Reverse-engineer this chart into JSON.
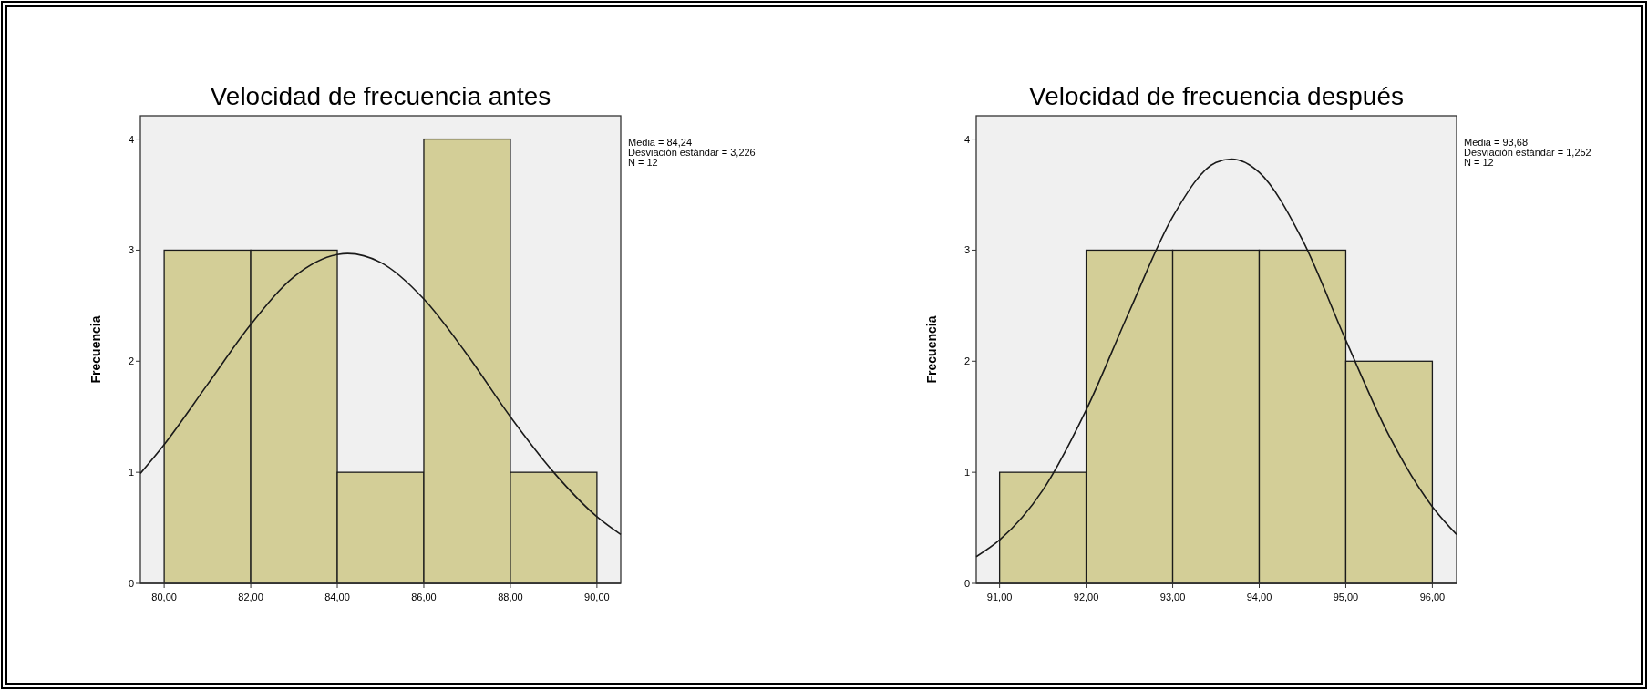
{
  "chart_data": [
    {
      "type": "histogram",
      "title": "Velocidad de frecuencia antes",
      "ylabel": "Frecuencia",
      "bins": [
        80,
        82,
        84,
        86,
        88,
        90
      ],
      "values": [
        3,
        3,
        1,
        4,
        1
      ],
      "color": "#d3ce97",
      "series": [
        {
          "type": "line",
          "color": "#1a1a1a",
          "x": [
            79.45,
            80,
            81,
            82,
            83,
            84,
            84.24,
            85,
            86,
            87,
            88,
            89,
            90,
            90.55
          ],
          "values": [
            0.99,
            1.25,
            1.79,
            2.33,
            2.76,
            2.96,
            2.97,
            2.89,
            2.56,
            2.06,
            1.5,
            1.0,
            0.6,
            0.44
          ]
        }
      ],
      "xlim": [
        79.45,
        90.55
      ],
      "xticks": [
        {
          "value": 80,
          "label": "80,00"
        },
        {
          "value": 82,
          "label": "82,00"
        },
        {
          "value": 84,
          "label": "84,00"
        },
        {
          "value": 86,
          "label": "86,00"
        },
        {
          "value": 88,
          "label": "88,00"
        },
        {
          "value": 90,
          "label": "90,00"
        }
      ],
      "ylim": [
        0,
        4.21
      ],
      "yticks": [
        0,
        1,
        2,
        3,
        4
      ],
      "annotations": [
        "Media = 84,24",
        "Desviación estándar = 3,226",
        "N = 12"
      ]
    },
    {
      "type": "histogram",
      "title": "Velocidad de frecuencia después",
      "ylabel": "Frecuencia",
      "bins": [
        91,
        92,
        93,
        94,
        95,
        96
      ],
      "values": [
        1,
        3,
        3,
        3,
        2
      ],
      "color": "#d3ce97",
      "series": [
        {
          "type": "line",
          "color": "#1a1a1a",
          "x": [
            90.73,
            91,
            91.5,
            92,
            92.5,
            93,
            93.5,
            93.68,
            94,
            94.5,
            95,
            95.5,
            96,
            96.28
          ],
          "values": [
            0.24,
            0.39,
            0.84,
            1.56,
            2.45,
            3.3,
            3.79,
            3.82,
            3.7,
            3.09,
            2.19,
            1.33,
            0.69,
            0.44
          ]
        }
      ],
      "xlim": [
        90.73,
        96.28
      ],
      "xticks": [
        {
          "value": 91,
          "label": "91,00"
        },
        {
          "value": 92,
          "label": "92,00"
        },
        {
          "value": 93,
          "label": "93,00"
        },
        {
          "value": 94,
          "label": "94,00"
        },
        {
          "value": 95,
          "label": "95,00"
        },
        {
          "value": 96,
          "label": "96,00"
        }
      ],
      "ylim": [
        0,
        4.21
      ],
      "yticks": [
        0,
        1,
        2,
        3,
        4
      ],
      "annotations": [
        "Media = 93,68",
        "Desviación estándar = 1,252",
        "N = 12"
      ]
    }
  ]
}
